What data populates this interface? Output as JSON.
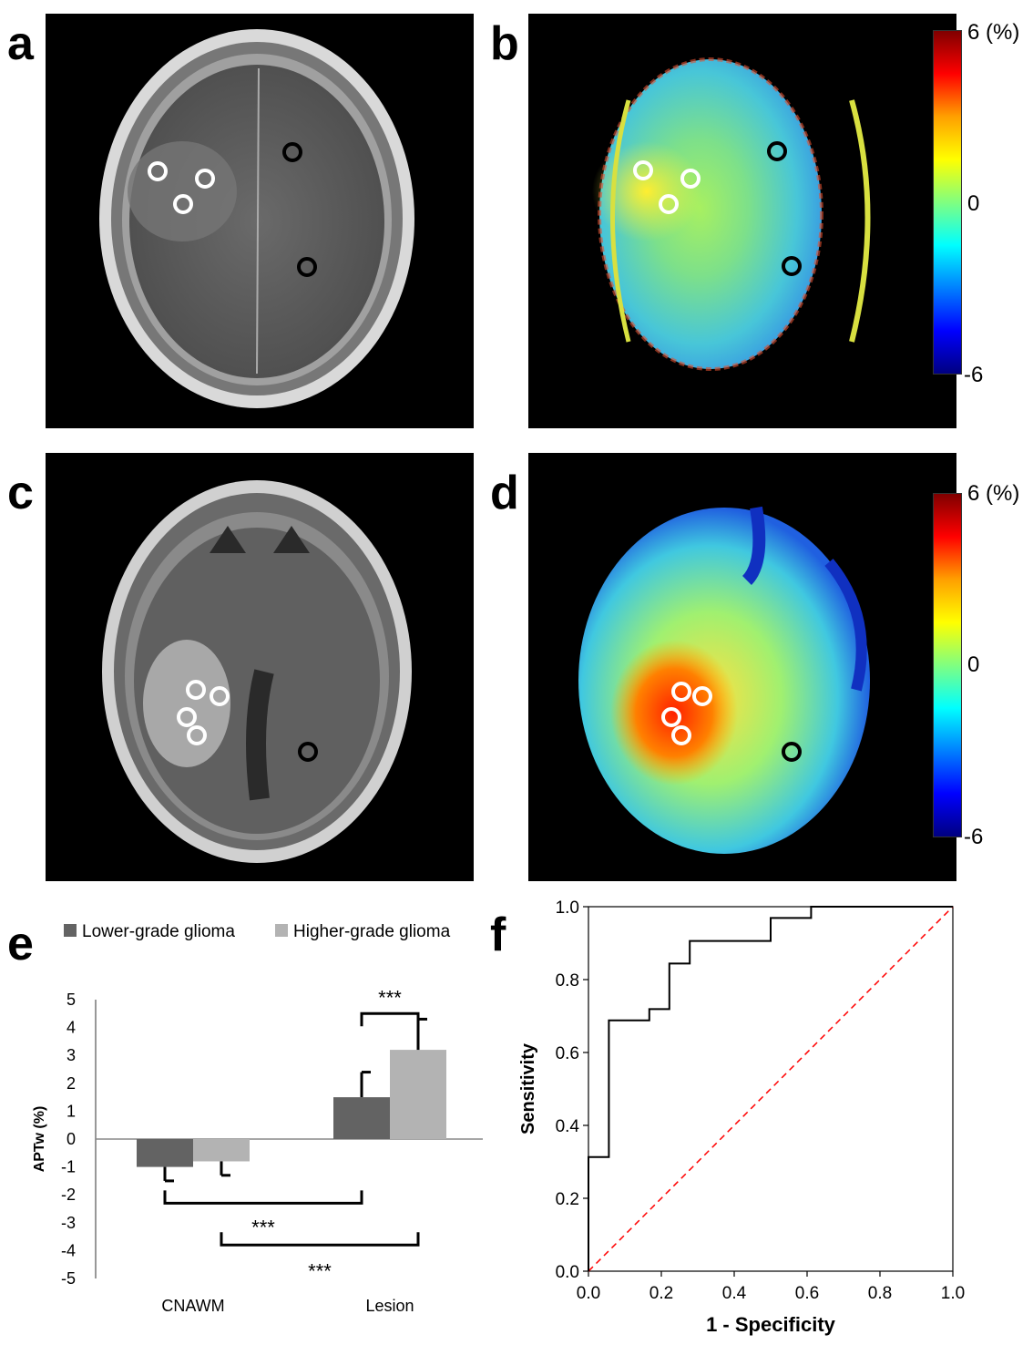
{
  "panels": {
    "a": {
      "letter": "a"
    },
    "b": {
      "letter": "b",
      "colorbar": {
        "max": "6",
        "unit": "(%)",
        "mid": "0",
        "min": "-6"
      }
    },
    "c": {
      "letter": "c"
    },
    "d": {
      "letter": "d",
      "colorbar": {
        "max": "6",
        "unit": "(%)",
        "mid": "0",
        "min": "-6"
      }
    },
    "e": {
      "letter": "e"
    },
    "f": {
      "letter": "f"
    }
  },
  "colors": {
    "lower_grade": "#636363",
    "higher_grade": "#b3b3b3",
    "roi_tumor": "#ffffff",
    "roi_normal": "#000000",
    "chance_line": "#ff0000"
  },
  "chart_data": [
    {
      "type": "bar",
      "panel": "e",
      "categories": [
        "CNAWM",
        "Lesion"
      ],
      "series": [
        {
          "name": "Lower-grade glioma",
          "values": [
            -1.0,
            1.5
          ],
          "errors": [
            0.5,
            0.9
          ]
        },
        {
          "name": "Higher-grade glioma",
          "values": [
            -0.8,
            3.2
          ],
          "errors": [
            0.5,
            1.1
          ]
        }
      ],
      "ylabel": "APTw (%)",
      "ylim": [
        -5,
        5
      ],
      "yticks": [
        "5",
        "4",
        "3",
        "2",
        "1",
        "0",
        "-1",
        "-2",
        "-3",
        "-4",
        "-5"
      ],
      "legend": "top",
      "annotations": [
        "***",
        "***",
        "***"
      ]
    },
    {
      "type": "line",
      "panel": "f",
      "xlabel": "1 - Specificity",
      "ylabel": "Sensitivity",
      "xlim": [
        0,
        1
      ],
      "ylim": [
        0,
        1
      ],
      "xticks": [
        "0.0",
        "0.2",
        "0.4",
        "0.6",
        "0.8",
        "1.0"
      ],
      "yticks": [
        "0.0",
        "0.2",
        "0.4",
        "0.6",
        "0.8",
        "1.0"
      ],
      "roc_x": [
        0,
        0,
        0.056,
        0.056,
        0.167,
        0.167,
        0.222,
        0.222,
        0.278,
        0.278,
        0.5,
        0.5,
        0.611,
        0.611,
        1.0
      ],
      "roc_y": [
        0,
        0.313,
        0.313,
        0.688,
        0.688,
        0.719,
        0.719,
        0.844,
        0.844,
        0.906,
        0.906,
        0.969,
        0.969,
        1.0,
        1.0
      ],
      "reference_x": [
        0,
        1
      ],
      "reference_y": [
        0,
        1
      ]
    }
  ]
}
